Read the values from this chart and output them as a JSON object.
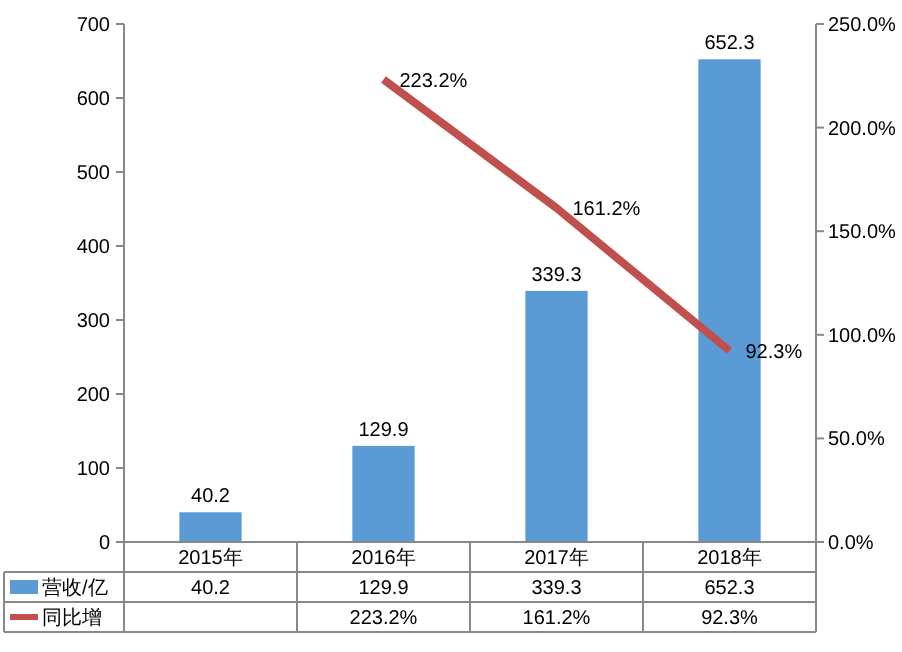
{
  "chart_data": {
    "type": "bar",
    "categories": [
      "2015年",
      "2016年",
      "2017年",
      "2018年"
    ],
    "series": [
      {
        "name": "营收/亿",
        "color": "#5b9bd5",
        "values": [
          40.2,
          129.9,
          339.3,
          652.3
        ],
        "value_labels": [
          "40.2",
          "129.9",
          "339.3",
          "652.3"
        ]
      },
      {
        "name": "同比增",
        "type": "line",
        "axis": "y2",
        "color": "#c0504d",
        "values": [
          null,
          223.2,
          161.2,
          92.3
        ],
        "value_labels": [
          null,
          "223.2%",
          "161.2%",
          "92.3%"
        ]
      }
    ],
    "ylim": [
      0,
      700
    ],
    "yticks": [
      0,
      100,
      200,
      300,
      400,
      500,
      600,
      700
    ],
    "y2lim": [
      0,
      250
    ],
    "y2ticks": [
      {
        "value": 0,
        "label": "0.0%"
      },
      {
        "value": 50,
        "label": "50.0%"
      },
      {
        "value": 100,
        "label": "100.0%"
      },
      {
        "value": 150,
        "label": "150.0%"
      },
      {
        "value": 200,
        "label": "200.0%"
      },
      {
        "value": 250,
        "label": "250.0%"
      }
    ],
    "legend": "bottom",
    "grid": false
  }
}
